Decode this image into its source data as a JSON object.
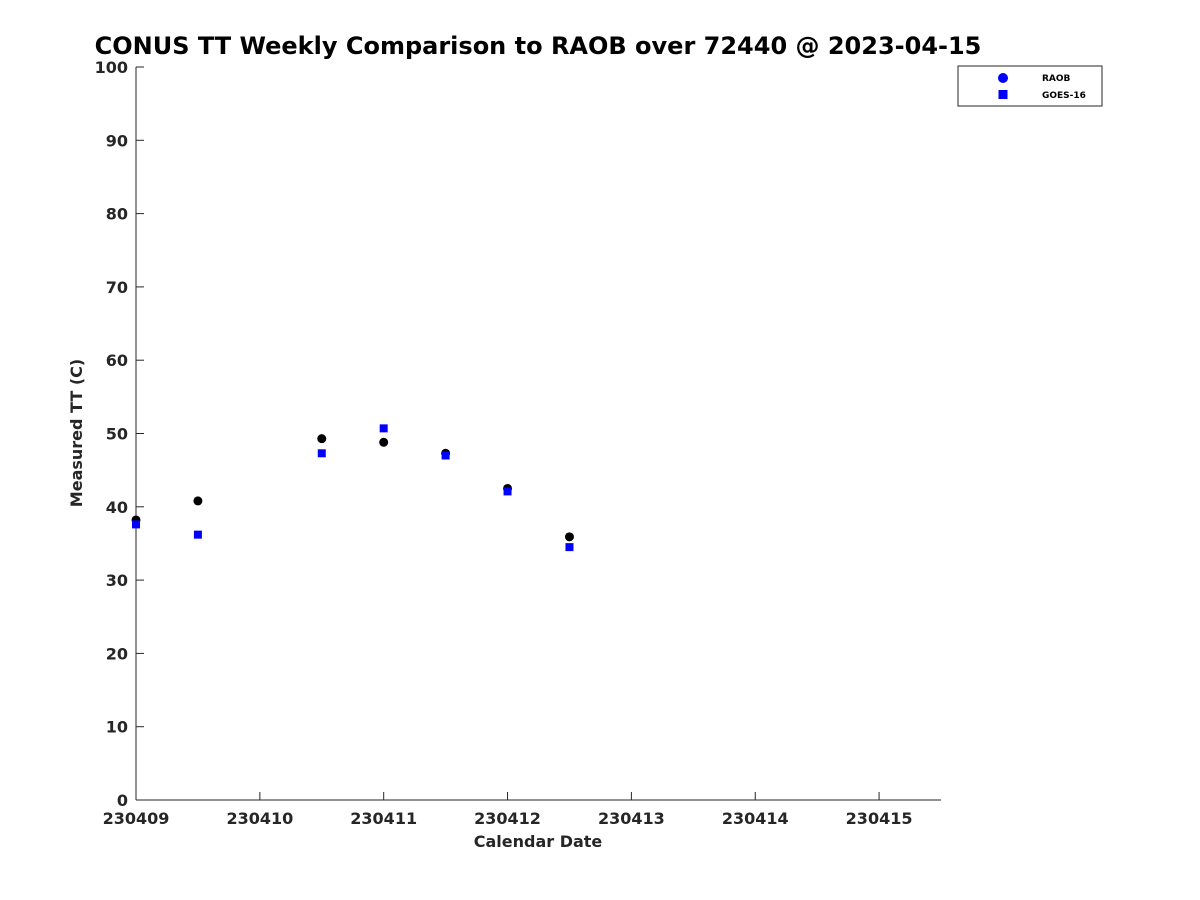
{
  "chart_data": {
    "type": "scatter",
    "title": "CONUS TT Weekly Comparison to RAOB over 72440 @ 2023-04-15",
    "xlabel": "Calendar Date",
    "ylabel": "Measured TT (C)",
    "xlim": [
      230409,
      230415.5
    ],
    "ylim": [
      0,
      100
    ],
    "xticks": [
      230409,
      230410,
      230411,
      230412,
      230413,
      230414,
      230415
    ],
    "xtick_labels": [
      "230409",
      "230410",
      "230411",
      "230412",
      "230413",
      "230414",
      "230415"
    ],
    "yticks": [
      0,
      10,
      20,
      30,
      40,
      50,
      60,
      70,
      80,
      90,
      100
    ],
    "ytick_labels": [
      "0",
      "10",
      "20",
      "30",
      "40",
      "50",
      "60",
      "70",
      "80",
      "90",
      "100"
    ],
    "grid": false,
    "legend_position": "top-right",
    "series": [
      {
        "name": "RAOB",
        "marker": "circle",
        "color": "#000000",
        "legend_color": "#0000ff",
        "x": [
          230409,
          230409.5,
          230410.5,
          230411,
          230411.5,
          230412,
          230412.5
        ],
        "y": [
          38.2,
          40.8,
          49.3,
          48.8,
          47.3,
          42.5,
          35.9
        ]
      },
      {
        "name": "GOES-16",
        "marker": "square",
        "color": "#0000ff",
        "legend_color": "#0000ff",
        "x": [
          230409,
          230409.5,
          230410.5,
          230411,
          230411.5,
          230412,
          230412.5
        ],
        "y": [
          37.6,
          36.2,
          47.3,
          50.7,
          47.0,
          42.1,
          34.5
        ]
      }
    ]
  }
}
